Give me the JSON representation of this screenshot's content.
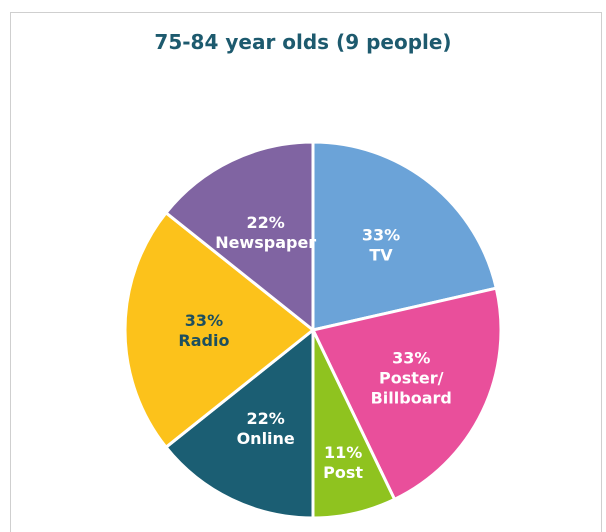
{
  "chart_data": {
    "type": "pie",
    "title": "75-84 year olds (9 people)",
    "slices": [
      {
        "name": "TV",
        "percent_label": "33%",
        "label_lines": [
          "TV"
        ],
        "value": 33,
        "color": "#6ba3d8",
        "text_color": "#ffffff"
      },
      {
        "name": "Poster/ Billboard",
        "percent_label": "33%",
        "label_lines": [
          "Poster/",
          "Billboard"
        ],
        "value": 33,
        "color": "#e94f9b",
        "text_color": "#ffffff"
      },
      {
        "name": "Post",
        "percent_label": "11%",
        "label_lines": [
          "Post"
        ],
        "value": 11,
        "color": "#8fc31f",
        "text_color": "#ffffff"
      },
      {
        "name": "Online",
        "percent_label": "22%",
        "label_lines": [
          "Online"
        ],
        "value": 22,
        "color": "#1b5e73",
        "text_color": "#ffffff"
      },
      {
        "name": "Radio",
        "percent_label": "33%",
        "label_lines": [
          "Radio"
        ],
        "value": 33,
        "color": "#fcc21b",
        "text_color": "#1d4f5e"
      },
      {
        "name": "Newspaper",
        "percent_label": "22%",
        "label_lines": [
          "Newspaper"
        ],
        "value": 22,
        "color": "#8064a2",
        "text_color": "#ffffff"
      }
    ]
  }
}
